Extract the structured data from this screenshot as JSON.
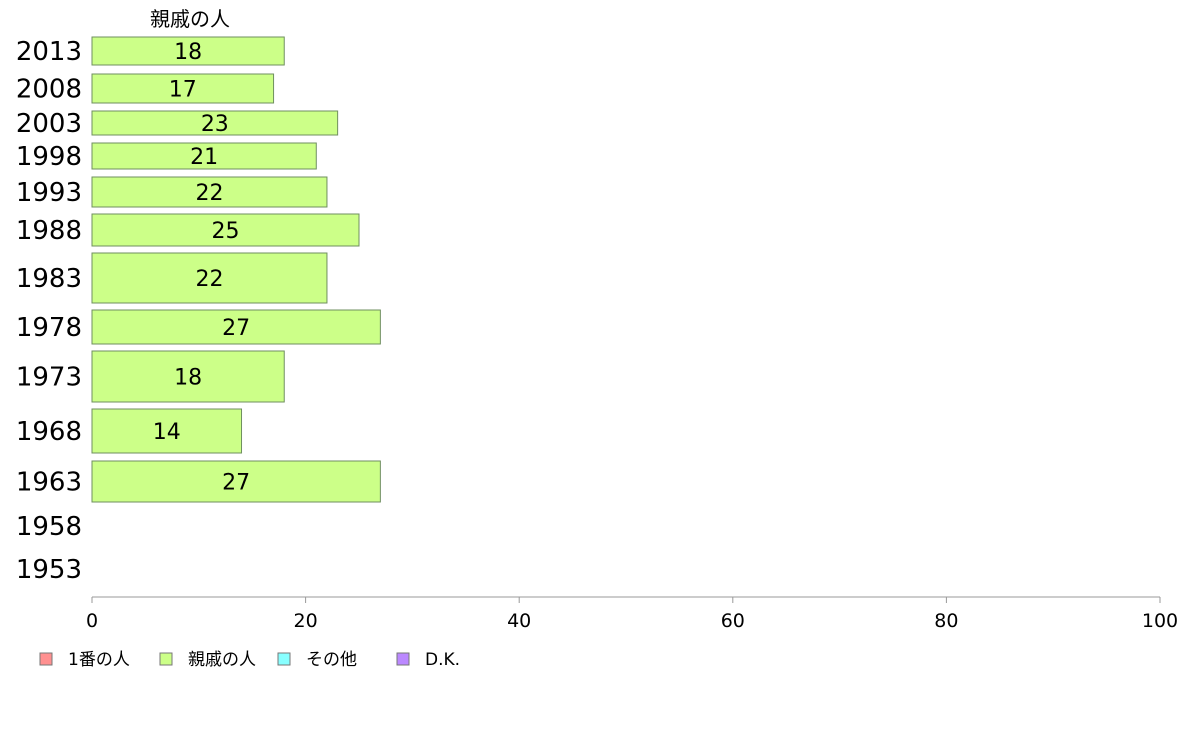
{
  "chart_data": {
    "type": "bar",
    "orientation": "horizontal",
    "series_title": "親戚の人",
    "categories": [
      "2013",
      "2008",
      "2003",
      "1998",
      "1993",
      "1988",
      "1983",
      "1978",
      "1973",
      "1968",
      "1963",
      "1958",
      "1953"
    ],
    "series": [
      {
        "name": "1番の人",
        "color": "#ff9090",
        "values": [
          null,
          null,
          null,
          null,
          null,
          null,
          null,
          null,
          null,
          null,
          null,
          null,
          null
        ]
      },
      {
        "name": "親戚の人",
        "color": "#ccff88",
        "values": [
          18,
          17,
          23,
          21,
          22,
          25,
          22,
          27,
          18,
          14,
          27,
          null,
          null
        ]
      },
      {
        "name": "その他",
        "color": "#88ffff",
        "values": [
          null,
          null,
          null,
          null,
          null,
          null,
          null,
          null,
          null,
          null,
          null,
          null,
          null
        ]
      },
      {
        "name": "D.K.",
        "color": "#bb88ff",
        "values": [
          null,
          null,
          null,
          null,
          null,
          null,
          null,
          null,
          null,
          null,
          null,
          null,
          null
        ]
      }
    ],
    "xlim": [
      0,
      100
    ],
    "xticks": [
      0,
      20,
      40,
      60,
      80,
      100
    ],
    "legend_position": "bottom-left",
    "grid": false
  }
}
